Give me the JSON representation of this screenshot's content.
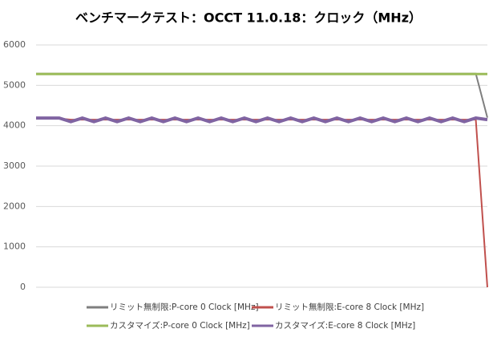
{
  "chart_data": {
    "type": "line",
    "title": "ベンチマークテスト：OCCT 11.0.18：クロック（MHz）",
    "categories": [
      null,
      null,
      null,
      null,
      null,
      null,
      null,
      null,
      null,
      null,
      null,
      null,
      null,
      null,
      null,
      null,
      null,
      null,
      null,
      null,
      null,
      null,
      null,
      null,
      null,
      null,
      null,
      null,
      null,
      null,
      null,
      null,
      null,
      null,
      null,
      null,
      null,
      null,
      null,
      null
    ],
    "ylim": [
      0,
      6000
    ],
    "yticks": [
      0,
      1000,
      2000,
      3000,
      4000,
      5000,
      6000
    ],
    "grid": true,
    "series": [
      {
        "name": "リミット無制限:P-core 0 Clock [MHz]",
        "color": "#7f7f7f",
        "width": 2,
        "values": [
          5290,
          5290,
          5290,
          5290,
          5290,
          5290,
          5290,
          5290,
          5290,
          5290,
          5290,
          5290,
          5290,
          5290,
          5290,
          5290,
          5290,
          5290,
          5290,
          5290,
          5290,
          5290,
          5290,
          5290,
          5290,
          5290,
          5290,
          5290,
          5290,
          5290,
          5290,
          5290,
          5290,
          5290,
          5290,
          5290,
          5290,
          5290,
          5290,
          4200
        ]
      },
      {
        "name": "カスタマイズ:P-core 0 Clock [MHz]",
        "color": "#9bbb59",
        "width": 3,
        "values": [
          5280,
          5280,
          5280,
          5280,
          5280,
          5280,
          5280,
          5280,
          5280,
          5280,
          5280,
          5280,
          5280,
          5280,
          5280,
          5280,
          5280,
          5280,
          5280,
          5280,
          5280,
          5280,
          5280,
          5280,
          5280,
          5280,
          5280,
          5280,
          5280,
          5280,
          5280,
          5280,
          5280,
          5280,
          5280,
          5280,
          5280,
          5280,
          5280,
          5280
        ]
      },
      {
        "name": "リミット無制限:E-core 8 Clock [MHz]",
        "color": "#c0504d",
        "width": 2,
        "values": [
          4180,
          4180,
          4180,
          4150,
          4150,
          4150,
          4150,
          4150,
          4150,
          4150,
          4150,
          4150,
          4150,
          4150,
          4150,
          4150,
          4150,
          4150,
          4150,
          4150,
          4150,
          4150,
          4150,
          4150,
          4150,
          4150,
          4150,
          4150,
          4150,
          4150,
          4150,
          4150,
          4150,
          4150,
          4150,
          4150,
          4150,
          4150,
          4150,
          0
        ]
      },
      {
        "name": "カスタマイズ:E-core 8 Clock [MHz]",
        "color": "#8064a2",
        "width": 4,
        "values": [
          4190,
          4190,
          4190,
          4100,
          4190,
          4100,
          4190,
          4100,
          4190,
          4100,
          4190,
          4100,
          4190,
          4100,
          4190,
          4100,
          4190,
          4100,
          4190,
          4100,
          4190,
          4100,
          4190,
          4100,
          4190,
          4100,
          4190,
          4100,
          4190,
          4100,
          4190,
          4100,
          4190,
          4100,
          4190,
          4100,
          4190,
          4100,
          4190,
          4150
        ]
      }
    ],
    "legend_order": [
      0,
      2,
      1,
      3
    ]
  }
}
